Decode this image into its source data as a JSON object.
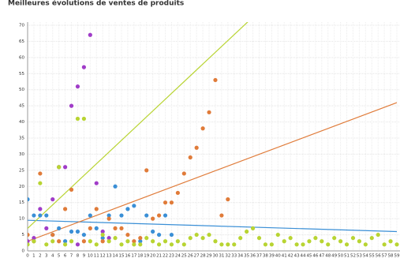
{
  "chart_data": {
    "type": "scatter",
    "title": "Meilleures évolutions de ventes de produits",
    "xlim": [
      0,
      59
    ],
    "ylim": [
      0,
      70
    ],
    "grid": true,
    "yticks": [
      0,
      5,
      10,
      15,
      20,
      25,
      30,
      35,
      40,
      45,
      50,
      55,
      60,
      65,
      70
    ],
    "xticks": [
      0,
      1,
      2,
      3,
      4,
      5,
      6,
      7,
      8,
      9,
      10,
      11,
      12,
      13,
      14,
      15,
      16,
      17,
      18,
      19,
      20,
      21,
      22,
      23,
      24,
      25,
      26,
      27,
      28,
      29,
      30,
      31,
      32,
      33,
      34,
      35,
      36,
      37,
      38,
      39,
      40,
      41,
      42,
      43,
      44,
      45,
      46,
      47,
      48,
      49,
      50,
      51,
      52,
      53,
      54,
      55,
      56,
      57,
      58,
      59
    ],
    "series": [
      {
        "color": "#3a8fd6",
        "trend": [
          9.5,
          6
        ],
        "x": [
          0,
          1,
          2,
          3,
          4,
          5,
          6,
          7,
          8,
          9,
          10,
          11,
          12,
          13,
          14,
          15,
          16,
          17,
          18,
          19,
          20,
          21,
          22,
          23
        ],
        "values": [
          16,
          11,
          11,
          11,
          5,
          7,
          3,
          6,
          6,
          5,
          11,
          7,
          4,
          11,
          20,
          11,
          13,
          14,
          3,
          11,
          6,
          5,
          11,
          5
        ]
      },
      {
        "color": "#e07b39",
        "trend": [
          3,
          46
        ],
        "x": [
          0,
          1,
          2,
          4,
          5,
          6,
          7,
          9,
          10,
          11,
          12,
          13,
          14,
          15,
          16,
          17,
          18,
          19,
          20,
          21,
          22,
          23,
          24,
          25,
          26,
          27,
          28,
          29,
          30,
          31,
          32
        ],
        "values": [
          5,
          3,
          24,
          5,
          3,
          13,
          19,
          3,
          7,
          13,
          3,
          10,
          7,
          7,
          5,
          3,
          4,
          25,
          10,
          11,
          15,
          15,
          18,
          24,
          29,
          32,
          38,
          43,
          53,
          11,
          16
        ]
      },
      {
        "color": "#a03cc8",
        "x": [
          0,
          1,
          2,
          3,
          4,
          5,
          6,
          7,
          8,
          9,
          10,
          11,
          12,
          13,
          8
        ],
        "values": [
          3,
          4,
          13,
          7,
          16,
          26,
          26,
          45,
          51,
          57,
          67,
          21,
          6,
          4,
          2
        ]
      },
      {
        "color": "#b8d432",
        "trend": [
          7,
          114.4
        ],
        "x": [
          0,
          1,
          2,
          3,
          4,
          5,
          6,
          7,
          8,
          9,
          10,
          11,
          12,
          13,
          14,
          15,
          16,
          17,
          18,
          19,
          20,
          21,
          22,
          23,
          24,
          25,
          26,
          27,
          28,
          29,
          30,
          31,
          32,
          33,
          34,
          35,
          36,
          37,
          38,
          39,
          40,
          41,
          42,
          43,
          44,
          45,
          46,
          47,
          48,
          49,
          50,
          51,
          52,
          53,
          54,
          55,
          56,
          57,
          58,
          59
        ],
        "values": [
          2,
          3,
          21,
          2,
          3,
          26,
          2,
          3,
          41,
          41,
          3,
          2,
          5,
          3,
          4,
          2,
          3,
          2,
          2,
          4,
          3,
          2,
          3,
          2,
          3,
          2,
          4,
          5,
          4,
          5,
          3,
          2,
          2,
          2,
          4,
          6,
          7,
          4,
          2,
          2,
          5,
          3,
          4,
          2,
          2,
          3,
          4,
          3,
          2,
          4,
          3,
          2,
          4,
          3,
          2,
          4,
          5,
          2,
          3,
          2
        ]
      }
    ]
  }
}
